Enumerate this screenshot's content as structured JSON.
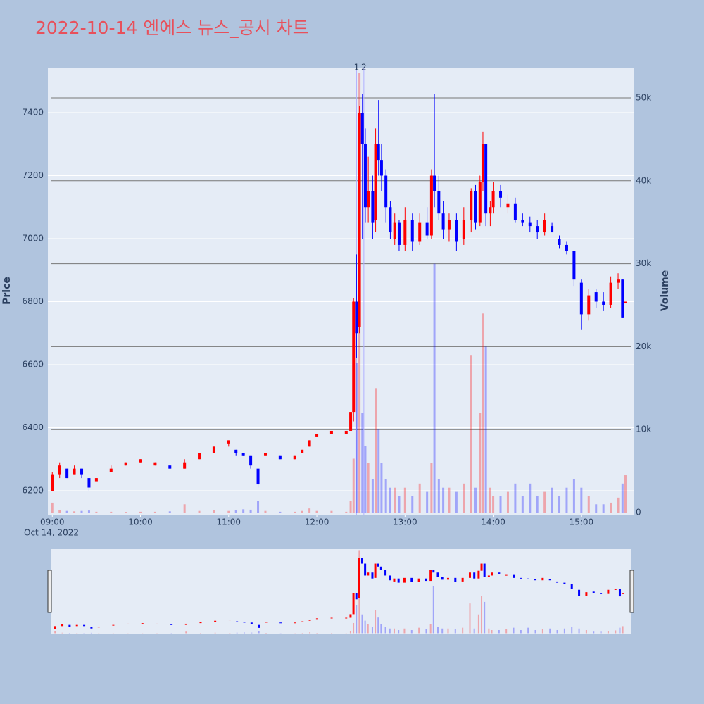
{
  "chart_data": {
    "type": "candlestick",
    "title": "2022-10-14 엔에스 뉴스_공시 차트",
    "y_label": "Price",
    "y2_label": "Volume",
    "x_date_label": "Oct 14, 2022",
    "increasing_color": "#ff0000",
    "decreasing_color": "#0000ff",
    "x": [
      "09:00",
      "09:05",
      "09:10",
      "09:15",
      "09:20",
      "09:25",
      "09:30",
      "09:40",
      "09:50",
      "10:00",
      "10:10",
      "10:20",
      "10:30",
      "10:40",
      "10:50",
      "11:00",
      "11:05",
      "11:10",
      "11:15",
      "11:20",
      "11:25",
      "11:35",
      "11:45",
      "11:50",
      "11:55",
      "12:00",
      "12:10",
      "12:20",
      "12:23",
      "12:25",
      "12:27",
      "12:29",
      "12:31",
      "12:33",
      "12:35",
      "12:38",
      "12:40",
      "12:42",
      "12:44",
      "12:47",
      "12:50",
      "12:53",
      "12:56",
      "13:00",
      "13:05",
      "13:10",
      "13:15",
      "13:18",
      "13:20",
      "13:23",
      "13:26",
      "13:30",
      "13:35",
      "13:40",
      "13:45",
      "13:48",
      "13:51",
      "13:53",
      "13:55",
      "13:58",
      "14:00",
      "14:05",
      "14:10",
      "14:15",
      "14:20",
      "14:25",
      "14:30",
      "14:35",
      "14:40",
      "14:45",
      "14:50",
      "14:55",
      "15:00",
      "15:05",
      "15:10",
      "15:15",
      "15:20",
      "15:25",
      "15:28",
      "15:30"
    ],
    "open": [
      6200,
      6250,
      6270,
      6250,
      6270,
      6240,
      6230,
      6260,
      6280,
      6290,
      6280,
      6280,
      6270,
      6300,
      6320,
      6350,
      6330,
      6320,
      6310,
      6270,
      6310,
      6310,
      6300,
      6320,
      6340,
      6370,
      6380,
      6380,
      6390,
      6450,
      6800,
      6720,
      7400,
      7300,
      7100,
      7150,
      7060,
      7300,
      7250,
      7200,
      7100,
      7000,
      7050,
      6980,
      7060,
      6990,
      7050,
      7010,
      7200,
      7150,
      7080,
      7030,
      7060,
      7000,
      7060,
      7150,
      7050,
      7180,
      7300,
      7080,
      7100,
      7150,
      7100,
      7110,
      7060,
      7050,
      7040,
      7020,
      7040,
      7000,
      6980,
      6960,
      6860,
      6760,
      6830,
      6800,
      6790,
      6860,
      6870,
      6800
    ],
    "high": [
      6260,
      6290,
      6270,
      6280,
      6270,
      6240,
      6240,
      6280,
      6290,
      6300,
      6290,
      6280,
      6300,
      6320,
      6340,
      6360,
      6330,
      6320,
      6310,
      6270,
      6320,
      6310,
      6310,
      6330,
      6360,
      6380,
      6390,
      6390,
      6450,
      6810,
      6950,
      7420,
      7460,
      7350,
      7260,
      7200,
      7350,
      7440,
      7300,
      7220,
      7120,
      7080,
      7060,
      7100,
      7080,
      7080,
      7100,
      7220,
      7460,
      7200,
      7120,
      7080,
      7080,
      7100,
      7160,
      7170,
      7200,
      7340,
      7300,
      7120,
      7180,
      7170,
      7140,
      7130,
      7080,
      7070,
      7060,
      7080,
      7050,
      7010,
      6990,
      6960,
      6870,
      6840,
      6840,
      6830,
      6880,
      6890,
      6870,
      6800
    ],
    "low": [
      6200,
      6240,
      6240,
      6250,
      6240,
      6200,
      6230,
      6260,
      6280,
      6290,
      6280,
      6270,
      6270,
      6300,
      6320,
      6340,
      6310,
      6310,
      6270,
      6210,
      6310,
      6300,
      6300,
      6320,
      6340,
      6370,
      6380,
      6380,
      6390,
      6420,
      6620,
      6700,
      7000,
      7050,
      7050,
      7000,
      7020,
      7200,
      7150,
      7050,
      7000,
      6980,
      6960,
      6960,
      6960,
      6980,
      7000,
      7000,
      7100,
      7060,
      7000,
      6990,
      6960,
      6980,
      7020,
      7030,
      7040,
      7150,
      7040,
      7040,
      7080,
      7100,
      7080,
      7050,
      7040,
      7020,
      7000,
      7010,
      7020,
      6970,
      6950,
      6850,
      6710,
      6740,
      6780,
      6770,
      6780,
      6840,
      6750,
      6800
    ],
    "close": [
      6250,
      6280,
      6240,
      6270,
      6250,
      6210,
      6240,
      6270,
      6290,
      6300,
      6290,
      6270,
      6290,
      6320,
      6340,
      6360,
      6320,
      6310,
      6280,
      6220,
      6320,
      6300,
      6310,
      6330,
      6360,
      6380,
      6390,
      6390,
      6450,
      6800,
      6700,
      7400,
      7300,
      7100,
      7150,
      7050,
      7300,
      7250,
      7200,
      7100,
      7020,
      7050,
      6980,
      7060,
      6990,
      7050,
      7010,
      7200,
      7150,
      7080,
      7030,
      7060,
      6990,
      7060,
      7150,
      7050,
      7180,
      7300,
      7080,
      7100,
      7150,
      7130,
      7110,
      7060,
      7050,
      7040,
      7020,
      7060,
      7020,
      6980,
      6960,
      6870,
      6760,
      6820,
      6800,
      6790,
      6860,
      6870,
      6750,
      6800
    ],
    "volume": [
      1200,
      300,
      200,
      150,
      200,
      250,
      100,
      100,
      80,
      100,
      100,
      150,
      1000,
      200,
      300,
      200,
      300,
      400,
      350,
      1400,
      200,
      100,
      100,
      200,
      500,
      200,
      200,
      100,
      1400,
      6500,
      18000,
      53000,
      12000,
      8000,
      6000,
      4000,
      15000,
      10000,
      6000,
      4000,
      3000,
      3000,
      2000,
      3000,
      2000,
      3500,
      2500,
      6000,
      30000,
      4000,
      3000,
      3000,
      2500,
      3500,
      19000,
      3000,
      12000,
      24000,
      20000,
      3000,
      2000,
      2000,
      2500,
      3500,
      2000,
      3500,
      2000,
      2500,
      3000,
      2000,
      3000,
      4000,
      3000,
      2000,
      1000,
      1000,
      1200,
      1800,
      3500,
      4500
    ],
    "xlim": [
      "08:57",
      "15:36"
    ],
    "xticks": [
      "09:00",
      "10:00",
      "11:00",
      "12:00",
      "13:00",
      "14:00",
      "15:00"
    ],
    "ylim": [
      6124,
      7543
    ],
    "yticks": [
      6200,
      6400,
      6600,
      6800,
      7000,
      7200,
      7400
    ],
    "y2lim": [
      -250,
      53650
    ],
    "y2ticks": [
      0,
      {
        "value": 10000,
        "label": "10k"
      },
      {
        "value": 20000,
        "label": "20k"
      },
      {
        "value": 30000,
        "label": "30k"
      },
      {
        "value": 40000,
        "label": "40k"
      },
      {
        "value": 50000,
        "label": "50k"
      }
    ],
    "annotations": [
      {
        "text": "1",
        "x": "12:27"
      },
      {
        "text": "2",
        "x": "12:32"
      }
    ]
  }
}
